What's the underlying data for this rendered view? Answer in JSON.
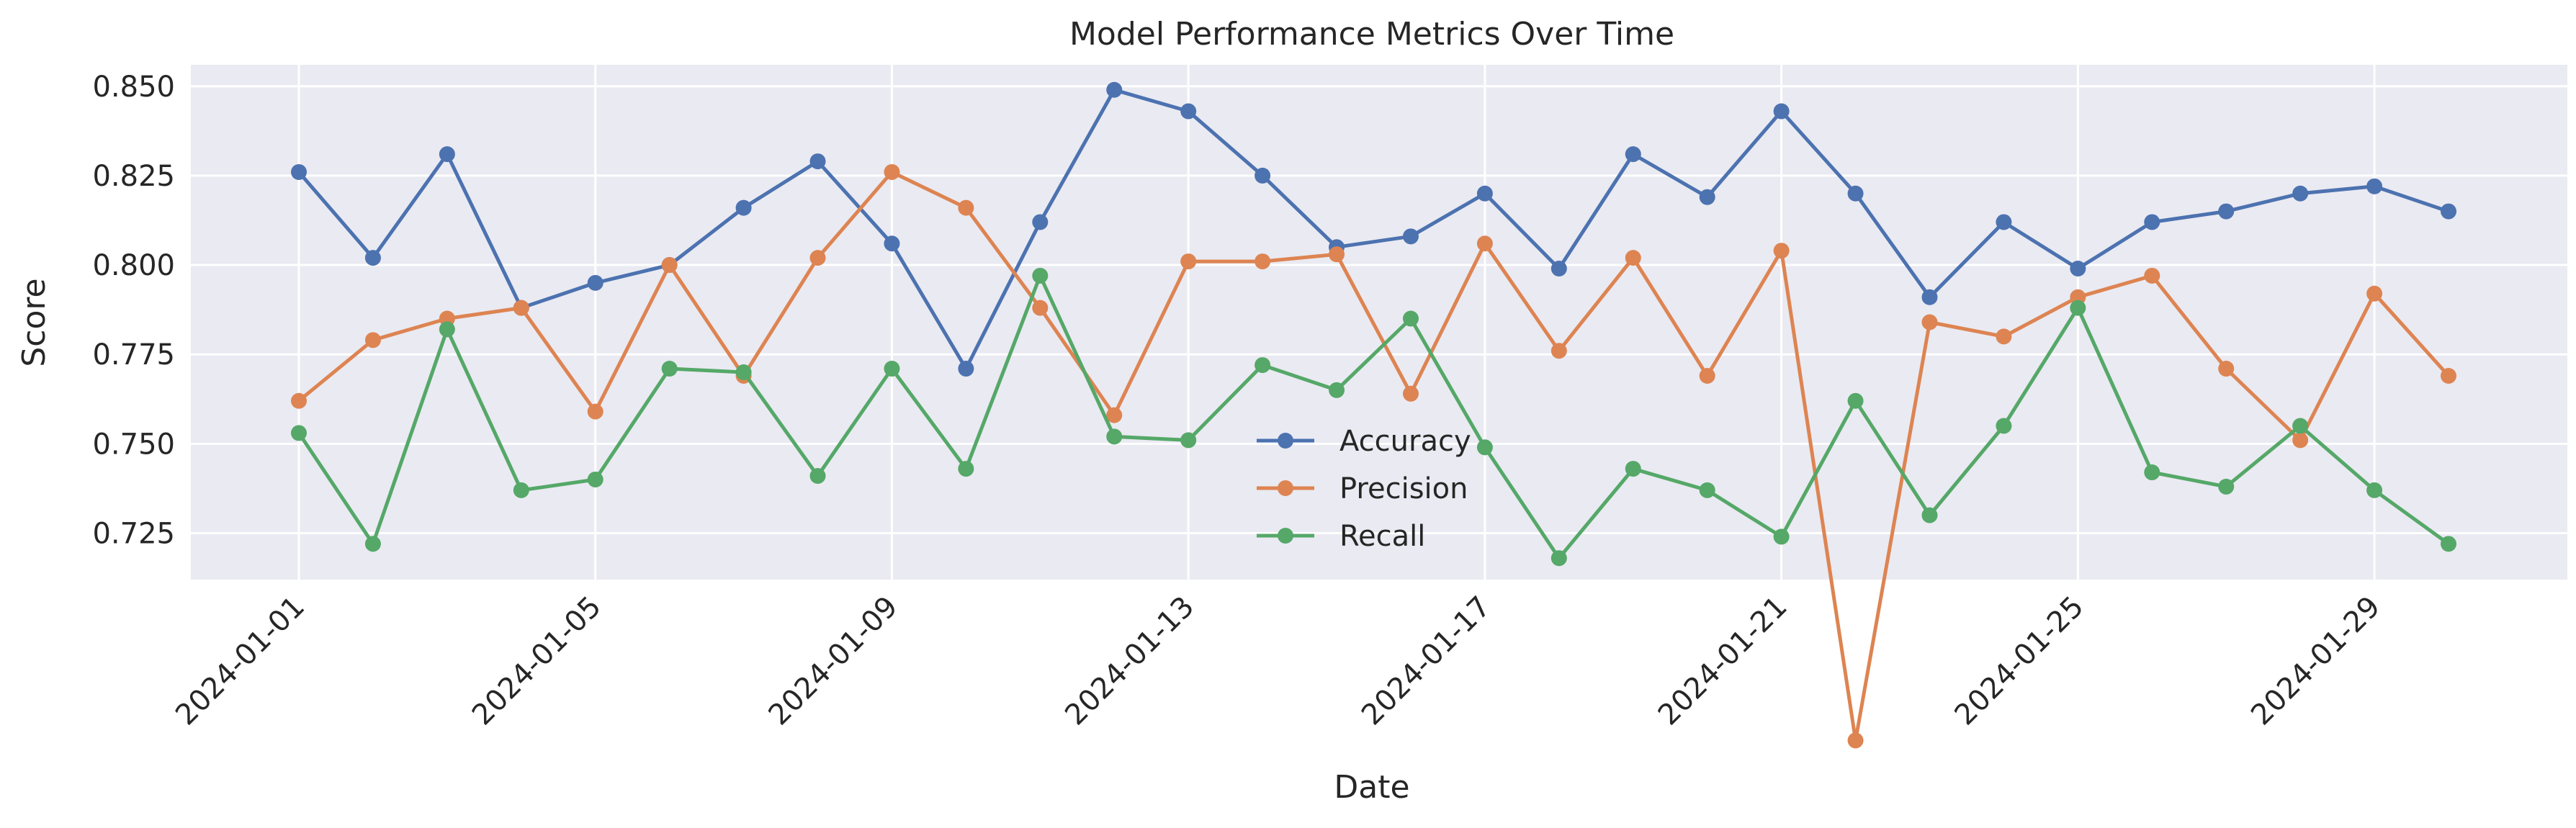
{
  "chart_data": {
    "type": "line",
    "title": "Model Performance Metrics Over Time",
    "xlabel": "Date",
    "ylabel": "Score",
    "x": [
      "2024-01-01",
      "2024-01-02",
      "2024-01-03",
      "2024-01-04",
      "2024-01-05",
      "2024-01-06",
      "2024-01-07",
      "2024-01-08",
      "2024-01-09",
      "2024-01-10",
      "2024-01-11",
      "2024-01-12",
      "2024-01-13",
      "2024-01-14",
      "2024-01-15",
      "2024-01-16",
      "2024-01-17",
      "2024-01-18",
      "2024-01-19",
      "2024-01-20",
      "2024-01-21",
      "2024-01-22",
      "2024-01-23",
      "2024-01-24",
      "2024-01-25",
      "2024-01-26",
      "2024-01-27",
      "2024-01-28",
      "2024-01-29",
      "2024-01-30"
    ],
    "x_tick_labels": [
      "2024-01-01",
      "2024-01-05",
      "2024-01-09",
      "2024-01-13",
      "2024-01-17",
      "2024-01-21",
      "2024-01-25",
      "2024-01-29"
    ],
    "y_ticks": [
      "0.725",
      "0.750",
      "0.775",
      "0.800",
      "0.825",
      "0.850"
    ],
    "ylim": [
      0.712,
      0.856
    ],
    "grid": true,
    "legend_position": "lower-center",
    "series": [
      {
        "name": "Accuracy",
        "color": "#4c72b0",
        "values": [
          0.826,
          0.802,
          0.831,
          0.788,
          0.795,
          0.8,
          0.816,
          0.829,
          0.806,
          0.771,
          0.812,
          0.849,
          0.843,
          0.825,
          0.805,
          0.808,
          0.82,
          0.799,
          0.831,
          0.819,
          0.843,
          0.82,
          0.791,
          0.812,
          0.799,
          0.812,
          0.815,
          0.82,
          0.822,
          0.815
        ]
      },
      {
        "name": "Precision",
        "color": "#dd8452",
        "values": [
          0.762,
          0.779,
          0.785,
          0.788,
          0.759,
          0.8,
          0.769,
          0.802,
          0.826,
          0.816,
          0.788,
          0.758,
          0.801,
          0.801,
          0.803,
          0.764,
          0.806,
          0.776,
          0.802,
          0.769,
          0.804,
          0.667,
          0.784,
          0.78,
          0.791,
          0.797,
          0.771,
          0.751,
          0.792,
          0.769
        ]
      },
      {
        "name": "Recall",
        "color": "#55a868",
        "values": [
          0.753,
          0.722,
          0.782,
          0.737,
          0.74,
          0.771,
          0.77,
          0.741,
          0.771,
          0.743,
          0.797,
          0.752,
          0.751,
          0.772,
          0.765,
          0.785,
          0.749,
          0.718,
          0.743,
          0.737,
          0.724,
          0.762,
          0.73,
          0.755,
          0.788,
          0.742,
          0.738,
          0.755,
          0.737,
          0.722
        ]
      }
    ]
  }
}
